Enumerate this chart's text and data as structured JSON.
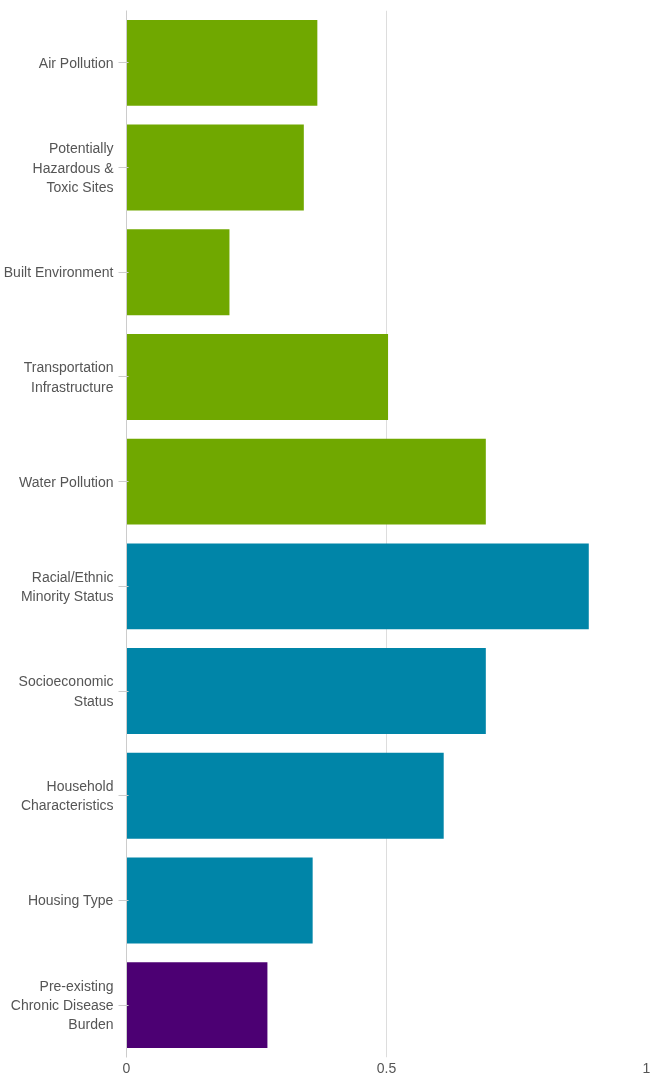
{
  "chart_data": {
    "type": "bar",
    "orientation": "horizontal",
    "categories": [
      "Air Pollution",
      "Potentially\nHazardous &\nToxic Sites",
      "Built Environment",
      "Transportation\nInfrastructure",
      "Water Pollution",
      "Racial/Ethnic\nMinority Status",
      "Socioeconomic\nStatus",
      "Household\nCharacteristics",
      "Housing Type",
      "Pre-existing\nChronic Disease\nBurden"
    ],
    "values": [
      0.367,
      0.341,
      0.198,
      0.503,
      0.691,
      0.889,
      0.691,
      0.61,
      0.358,
      0.271
    ],
    "colors": [
      "#70a800",
      "#70a800",
      "#70a800",
      "#70a800",
      "#70a800",
      "#0085a8",
      "#0085a8",
      "#0085a8",
      "#0085a8",
      "#4c0073"
    ],
    "xlim": [
      0,
      1
    ],
    "xticks": [
      0,
      0.5,
      1
    ],
    "grid": "x"
  }
}
